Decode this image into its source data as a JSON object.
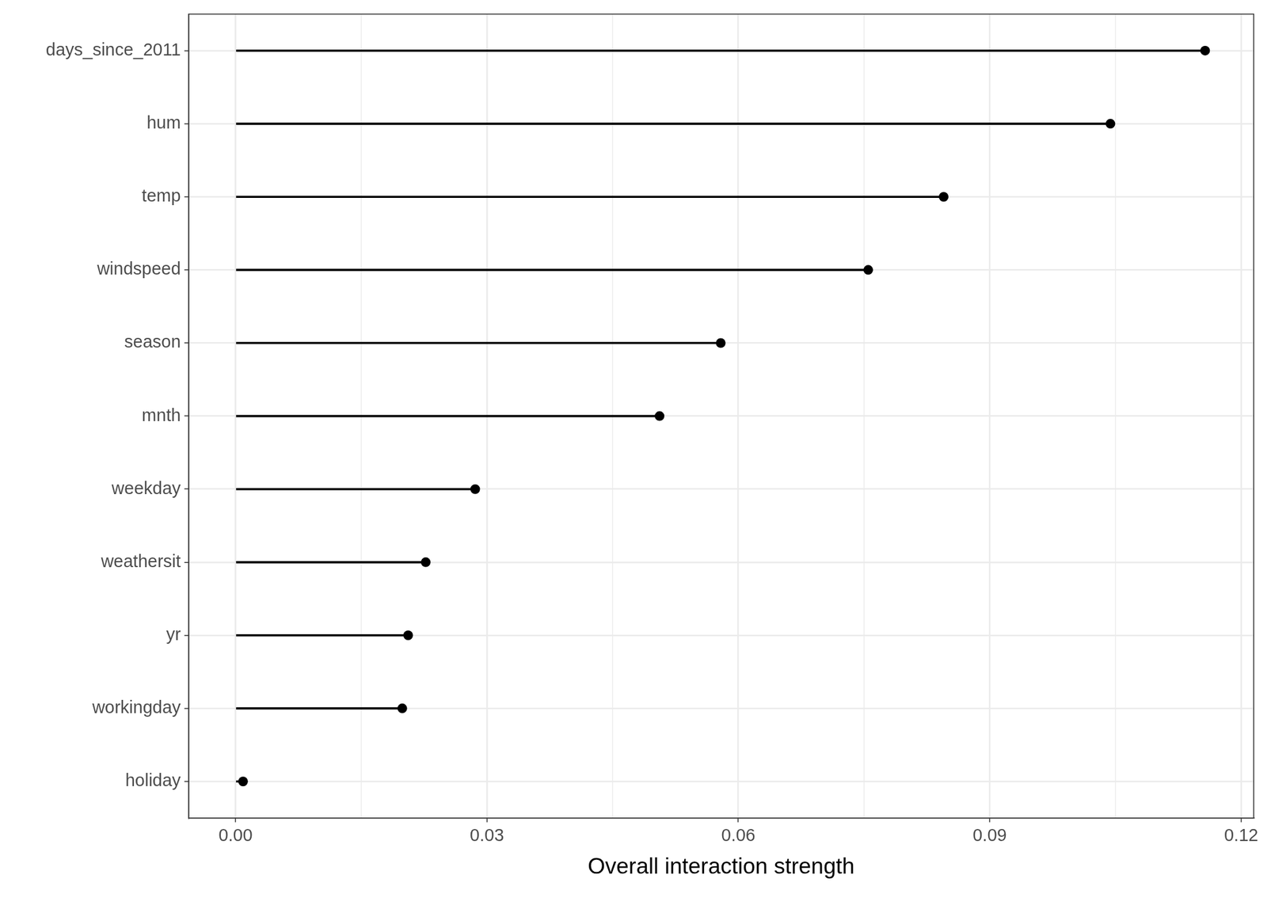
{
  "chart_data": {
    "type": "lollipop",
    "orientation": "horizontal",
    "x_label": "Overall interaction strength",
    "categories": [
      "days_since_2011",
      "hum",
      "temp",
      "windspeed",
      "season",
      "mnth",
      "weekday",
      "weathersit",
      "yr",
      "workingday",
      "holiday"
    ],
    "values": [
      0.1157,
      0.1044,
      0.0845,
      0.0755,
      0.0579,
      0.0506,
      0.0286,
      0.0227,
      0.0206,
      0.0199,
      0.0009
    ],
    "color": "#000000",
    "xlim": [
      -0.0056,
      0.1215
    ],
    "xticks": [
      {
        "value": 0,
        "label": "0.00"
      },
      0.03,
      0.06,
      0.09,
      0.12
    ],
    "grid": true
  }
}
